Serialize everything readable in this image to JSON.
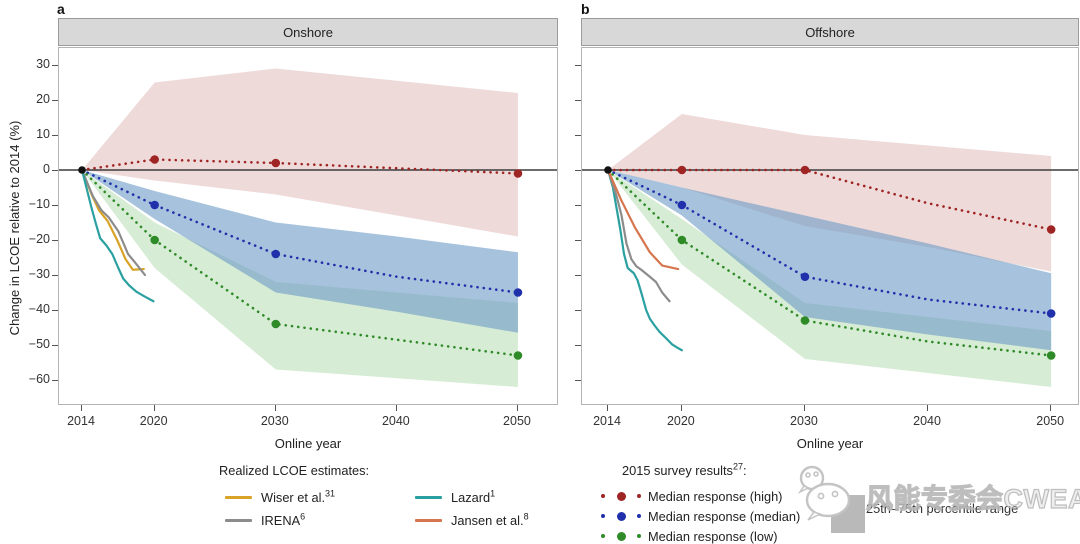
{
  "figure": {
    "panel_a_label": "a",
    "panel_b_label": "b",
    "y_axis_title": "Change in LCOE relative to 2014 (%)",
    "x_axis_title": "Online year",
    "x_ticks": [
      "2014",
      "2020",
      "2030",
      "2040",
      "2050"
    ],
    "x_tick_values": [
      2014,
      2020,
      2030,
      2040,
      2050
    ],
    "y_ticks": [
      "30",
      "20",
      "10",
      "0",
      "−10",
      "−20",
      "−30",
      "−40",
      "−50",
      "−60"
    ],
    "y_tick_values": [
      30,
      20,
      10,
      0,
      -10,
      -20,
      -30,
      -40,
      -50,
      -60
    ]
  },
  "chart_data": [
    {
      "type": "line",
      "title": "Onshore",
      "xlabel": "Online year",
      "ylabel": "Change in LCOE relative to 2014 (%)",
      "x": [
        2014,
        2020,
        2030,
        2040,
        2050
      ],
      "ylim": [
        -67,
        35
      ],
      "series": [
        {
          "name": "Median response (high)",
          "key": "high",
          "style": "dotted",
          "values": [
            0,
            3,
            2,
            0.5,
            -1
          ],
          "marker_years": [
            2020,
            2030,
            2050
          ]
        },
        {
          "name": "Median response (median)",
          "key": "median",
          "style": "dotted",
          "values": [
            0,
            -10,
            -24,
            -30.5,
            -35
          ],
          "marker_years": [
            2020,
            2030,
            2050
          ]
        },
        {
          "name": "Median response (low)",
          "key": "low",
          "style": "dotted",
          "values": [
            0,
            -20,
            -44,
            -48.5,
            -53
          ],
          "marker_years": [
            2020,
            2030,
            2050
          ]
        }
      ],
      "bands": [
        {
          "name": "25th–75th percentile range (high)",
          "key": "high",
          "upper": [
            0,
            25,
            29,
            25.5,
            22
          ],
          "lower": [
            0,
            -3,
            -7,
            -13,
            -19
          ]
        },
        {
          "name": "25th–75th percentile range (median)",
          "key": "median",
          "upper": [
            0,
            -6,
            -15,
            -19,
            -23.5
          ],
          "lower": [
            0,
            -14,
            -35,
            -40.5,
            -46.5
          ]
        },
        {
          "name": "25th–75th percentile range (low)",
          "key": "low",
          "upper": [
            0,
            -15,
            -32,
            -35,
            -38
          ],
          "lower": [
            0,
            -28,
            -57,
            -59.5,
            -62
          ]
        }
      ],
      "realized": [
        {
          "name": "Wiser et al.",
          "key": "wiser",
          "points": [
            [
              2014,
              0
            ],
            [
              2014.8,
              -7
            ],
            [
              2015.4,
              -11.5
            ],
            [
              2016.1,
              -14.5
            ],
            [
              2016.9,
              -20
            ],
            [
              2017.6,
              -25.5
            ],
            [
              2018.2,
              -28.5
            ],
            [
              2019.1,
              -28.3
            ]
          ]
        },
        {
          "name": "IRENA",
          "key": "irena",
          "points": [
            [
              2014,
              0
            ],
            [
              2014.9,
              -7.5
            ],
            [
              2015.6,
              -11.5
            ],
            [
              2016.2,
              -13.5
            ],
            [
              2017,
              -17.5
            ],
            [
              2017.8,
              -24
            ],
            [
              2018.4,
              -26.5
            ],
            [
              2019.2,
              -30
            ]
          ]
        },
        {
          "name": "Lazard",
          "key": "lazard",
          "points": [
            [
              2014,
              0
            ],
            [
              2014.8,
              -11
            ],
            [
              2015.2,
              -16
            ],
            [
              2015.5,
              -19.5
            ],
            [
              2016,
              -21.5
            ],
            [
              2016.5,
              -24
            ],
            [
              2017,
              -28
            ],
            [
              2017.4,
              -31
            ],
            [
              2017.9,
              -33
            ],
            [
              2018.5,
              -34.8
            ],
            [
              2019.2,
              -36.2
            ],
            [
              2019.9,
              -37.5
            ]
          ]
        }
      ],
      "origin": {
        "year": 2014,
        "value": 0
      }
    },
    {
      "type": "line",
      "title": "Offshore",
      "xlabel": "Online year",
      "ylabel": "Change in LCOE relative to 2014 (%)",
      "x": [
        2014,
        2020,
        2030,
        2040,
        2050
      ],
      "ylim": [
        -67,
        35
      ],
      "series": [
        {
          "name": "Median response (high)",
          "key": "high",
          "style": "dotted",
          "values": [
            0,
            0,
            0,
            -9.5,
            -17
          ],
          "marker_years": [
            2020,
            2030,
            2050
          ]
        },
        {
          "name": "Median response (median)",
          "key": "median",
          "style": "dotted",
          "values": [
            0,
            -10,
            -30.5,
            -37,
            -41
          ],
          "marker_years": [
            2020,
            2030,
            2050
          ]
        },
        {
          "name": "Median response (low)",
          "key": "low",
          "style": "dotted",
          "values": [
            0,
            -20,
            -43,
            -49,
            -53
          ],
          "marker_years": [
            2020,
            2030,
            2050
          ]
        }
      ],
      "bands": [
        {
          "name": "25th–75th percentile range (high)",
          "key": "high",
          "upper": [
            0,
            16,
            10,
            7,
            4
          ],
          "lower": [
            0,
            -5,
            -16,
            -22,
            -29
          ]
        },
        {
          "name": "25th–75th percentile range (median)",
          "key": "median",
          "upper": [
            0,
            -5,
            -13,
            -21,
            -29.5
          ],
          "lower": [
            0,
            -13,
            -42,
            -47,
            -51.5
          ]
        },
        {
          "name": "25th–75th percentile range (low)",
          "key": "low",
          "upper": [
            0,
            -14,
            -38,
            -42,
            -46
          ],
          "lower": [
            0,
            -27,
            -54,
            -58,
            -62
          ]
        }
      ],
      "realized": [
        {
          "name": "Lazard",
          "key": "lazard",
          "points": [
            [
              2014,
              0
            ],
            [
              2014.4,
              -5
            ],
            [
              2014.7,
              -11
            ],
            [
              2015,
              -17
            ],
            [
              2015.3,
              -24
            ],
            [
              2015.6,
              -28
            ],
            [
              2016.1,
              -29.5
            ],
            [
              2016.4,
              -31.5
            ],
            [
              2016.7,
              -35
            ],
            [
              2017.1,
              -40
            ],
            [
              2017.4,
              -42.5
            ],
            [
              2017.8,
              -44.5
            ],
            [
              2018.2,
              -46.3
            ],
            [
              2018.7,
              -48
            ],
            [
              2019.2,
              -49.8
            ],
            [
              2019.6,
              -50.7
            ],
            [
              2020,
              -51.5
            ]
          ]
        },
        {
          "name": "IRENA",
          "key": "irena",
          "points": [
            [
              2014,
              0
            ],
            [
              2014.7,
              -7.5
            ],
            [
              2015.1,
              -13
            ],
            [
              2015.5,
              -21
            ],
            [
              2015.9,
              -25.5
            ],
            [
              2016.3,
              -27.5
            ],
            [
              2016.7,
              -28.5
            ],
            [
              2017.4,
              -30.5
            ],
            [
              2017.9,
              -32
            ],
            [
              2018.4,
              -35
            ],
            [
              2019,
              -37.5
            ]
          ]
        },
        {
          "name": "Jansen et al.",
          "key": "jansen",
          "points": [
            [
              2014,
              0
            ],
            [
              2015.1,
              -8.8
            ],
            [
              2016.2,
              -16.5
            ],
            [
              2017.4,
              -23.5
            ],
            [
              2018.4,
              -27.3
            ],
            [
              2019.7,
              -28.3
            ]
          ]
        }
      ],
      "origin": {
        "year": 2014,
        "value": 0
      }
    }
  ],
  "legends": {
    "realized": {
      "title": "Realized LCOE estimates:",
      "items": [
        {
          "label": "Wiser et al.",
          "sup": "31",
          "key": "wiser"
        },
        {
          "label": "Lazard",
          "sup": "1",
          "key": "lazard"
        },
        {
          "label": "IRENA",
          "sup": "6",
          "key": "irena"
        },
        {
          "label": "Jansen et al.",
          "sup": "8",
          "key": "jansen"
        }
      ]
    },
    "survey": {
      "title_prefix": "2015 survey results",
      "title_sup": "27",
      "title_suffix": ":",
      "items": [
        {
          "label": "Median response (high)",
          "key": "high"
        },
        {
          "label": "Median response (median)",
          "key": "median"
        },
        {
          "label": "Median response (low)",
          "key": "low"
        }
      ],
      "percentile_label": "25th–75th percentile range"
    }
  },
  "watermark": {
    "text": "风能专委会CWEA"
  },
  "colors": {
    "survey": {
      "high": "#9f2424",
      "median": "#2030ab",
      "low": "#2e8b28"
    },
    "bands": {
      "high": "#dfb6b6",
      "median": "#6f9dc6",
      "low": "#b7dcb2"
    },
    "band_opacity": {
      "high": 0.5,
      "median": 0.62,
      "low": 0.55
    },
    "realized": {
      "wiser": "#d8a326",
      "irena": "#8c8c8c",
      "lazard": "#2ba0a0",
      "jansen": "#d6764e"
    },
    "zero_line": "#3c3c3c",
    "origin_dot": "#111111",
    "facet_header_bg": "#d8d8d8",
    "percentile_swatch": "#b9b9b9"
  }
}
